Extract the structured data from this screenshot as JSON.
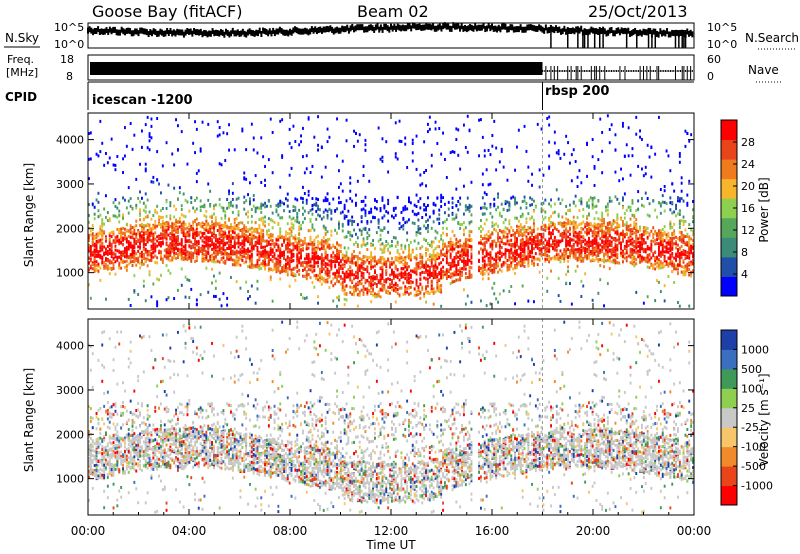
{
  "header": {
    "station": "Goose Bay (fitACF)",
    "beam": "Beam 02",
    "date": "25/Oct/2013"
  },
  "noise_panel": {
    "left_label": "N.Sky",
    "left_ticks": [
      "10^5",
      "10^0"
    ],
    "right_ticks": [
      "10^5",
      "10^0"
    ],
    "right_label": "N.Search"
  },
  "freq_panel": {
    "left_label_line1": "Freq.",
    "left_label_line2": "[MHz]",
    "left_ticks": [
      "18",
      "8"
    ],
    "right_ticks": [
      "60",
      "0"
    ],
    "right_label": "Nave"
  },
  "cpid": {
    "label": "CPID",
    "segments": [
      {
        "name": "icescan -1200",
        "start_hour": 0,
        "end_hour": 18.0
      },
      {
        "name": "rbsp 200",
        "start_hour": 18.0,
        "end_hour": 24
      }
    ]
  },
  "chart_data": [
    {
      "type": "heatmap",
      "parameter": "power",
      "ylabel": "Slant Range [km]",
      "yticks": [
        "1000",
        "2000",
        "3000",
        "4000"
      ],
      "ylim": [
        180,
        4600
      ],
      "xlim": [
        0,
        24
      ],
      "colorbar": {
        "label": "Power [dB]",
        "ticks": [
          "4",
          "8",
          "12",
          "16",
          "20",
          "24",
          "28"
        ],
        "range": [
          0,
          32
        ],
        "colors": [
          "#0000ff",
          "#1f4fa8",
          "#3c8a78",
          "#55a85a",
          "#8fcf4f",
          "#f7b52b",
          "#f07a1e",
          "#e8451b",
          "#ff0000"
        ]
      }
    },
    {
      "type": "heatmap",
      "parameter": "velocity",
      "ylabel": "Slant Range [km]",
      "yticks": [
        "1000",
        "2000",
        "3000",
        "4000"
      ],
      "ylim": [
        180,
        4600
      ],
      "xlim": [
        0,
        24
      ],
      "xlabel": "Time UT",
      "xticks": [
        "00:00",
        "04:00",
        "08:00",
        "12:00",
        "16:00",
        "20:00",
        "00:00"
      ],
      "colorbar": {
        "label": "Velocity [m s⁻¹]",
        "ticks": [
          "1000",
          "500",
          "100",
          "25",
          "-25",
          "-100",
          "-500",
          "-1000"
        ],
        "colors": [
          "#1f3fa8",
          "#3a6fbf",
          "#3f9a5a",
          "#8fcf4f",
          "#c8c8c8",
          "#f7c66a",
          "#f08a2a",
          "#e8451b",
          "#ff0000"
        ]
      }
    }
  ]
}
